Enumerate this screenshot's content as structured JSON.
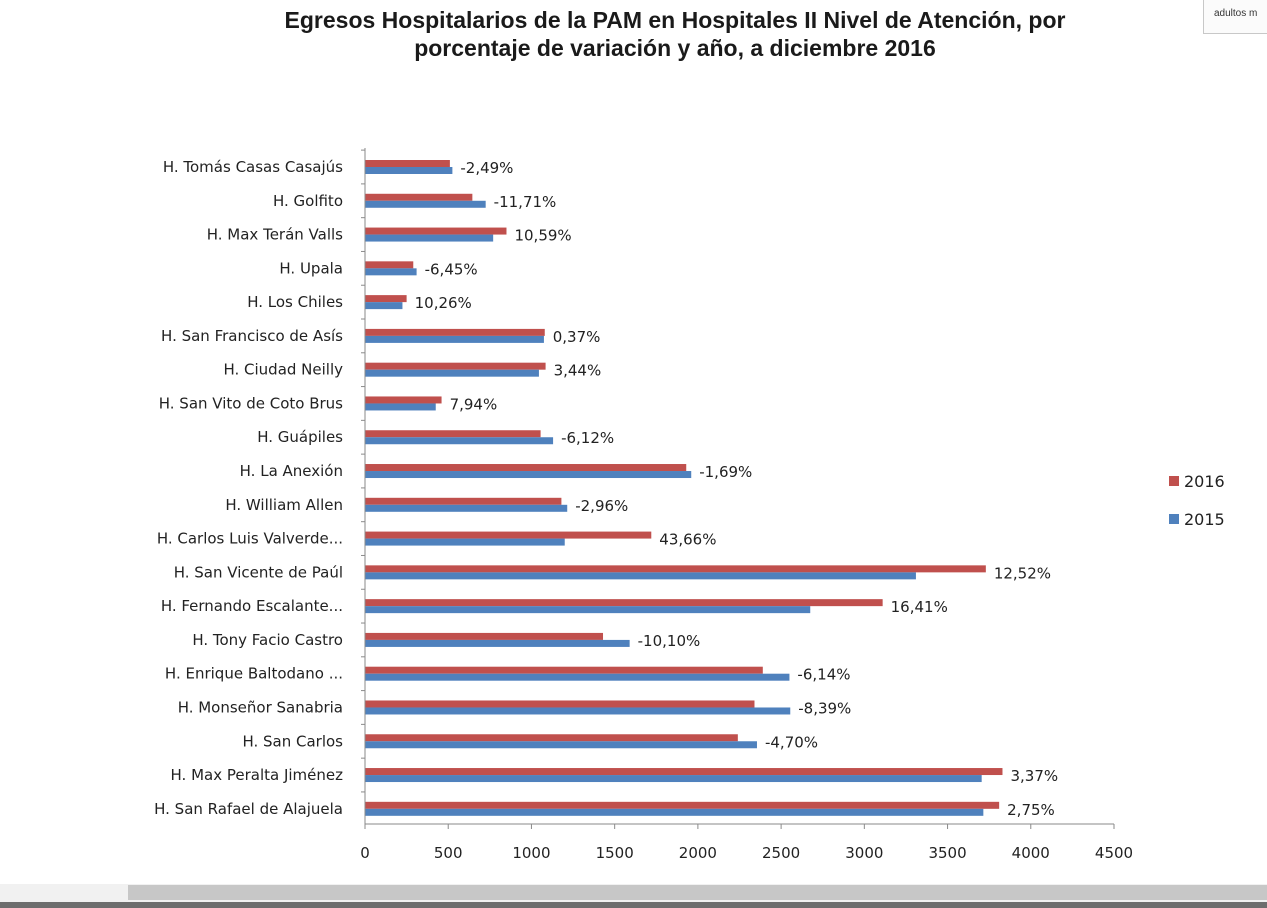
{
  "corner_tab": {
    "text": "adultos m"
  },
  "chart_data": {
    "type": "bar",
    "orientation": "horizontal",
    "title": "Egresos Hospitalarios de la PAM en Hospitales II Nivel de Atención,  por porcentaje de variación y año, a diciembre 2016",
    "title_line1": "Egresos Hospitalarios de la PAM en Hospitales II Nivel de Atención,  por",
    "title_line2": "porcentaje de variación y año, a diciembre 2016",
    "xlabel": "",
    "ylabel": "",
    "xlim": [
      0,
      4500
    ],
    "xticks": [
      0,
      500,
      1000,
      1500,
      2000,
      2500,
      3000,
      3500,
      4000,
      4500
    ],
    "grid": false,
    "legend_position": "right",
    "categories": [
      "H. Tomás Casas Casajús",
      "H. Golfito",
      "H. Max Terán Valls",
      "H. Upala",
      "H. Los Chiles",
      "H. San Francisco de Asís",
      "H. Ciudad Neilly",
      "H. San Vito de Coto Brus",
      "H. Guápiles",
      "H. La Anexión",
      "H. William Allen",
      "H. Carlos Luis Valverde...",
      "H. San Vicente de Paúl",
      "H. Fernando Escalante...",
      "H. Tony Facio Castro",
      "H. Enrique Baltodano ...",
      "H. Monseñor Sanabria",
      "H. San Carlos",
      "H. Max Peralta Jiménez",
      "H. San Rafael de Alajuela"
    ],
    "series": [
      {
        "name": "2016",
        "color": "#c0504d",
        "values": [
          510,
          645,
          850,
          290,
          250,
          1080,
          1085,
          460,
          1055,
          1930,
          1180,
          1720,
          3730,
          3110,
          1430,
          2390,
          2340,
          2240,
          3830,
          3810
        ]
      },
      {
        "name": "2015",
        "color": "#4f81bd",
        "values": [
          525,
          725,
          770,
          310,
          225,
          1075,
          1045,
          425,
          1130,
          1960,
          1215,
          1200,
          3310,
          2675,
          1590,
          2550,
          2555,
          2355,
          3705,
          3715
        ]
      }
    ],
    "data_labels": [
      "-2,49%",
      "-11,71%",
      "10,59%",
      "-6,45%",
      "10,26%",
      "0,37%",
      "3,44%",
      "7,94%",
      "-6,12%",
      "-1,69%",
      "-2,96%",
      "43,66%",
      "12,52%",
      "16,41%",
      "-10,10%",
      "-6,14%",
      "-8,39%",
      "-4,70%",
      "3,37%",
      "2,75%"
    ],
    "legend": [
      "2016",
      "2015"
    ]
  }
}
